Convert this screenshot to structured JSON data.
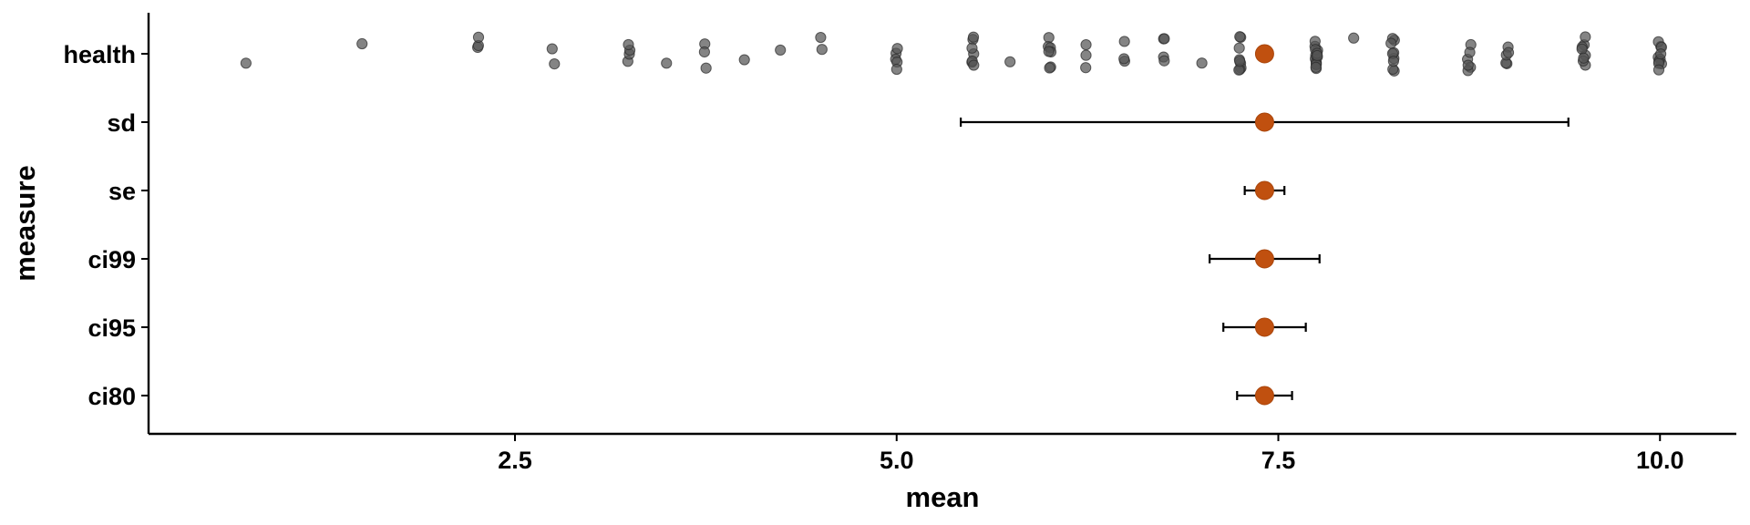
{
  "chart_data": {
    "type": "scatter",
    "title": "",
    "xlabel": "mean",
    "ylabel": "measure",
    "xlim": [
      0.1,
      10.5
    ],
    "x_ticks": [
      2.5,
      5.0,
      7.5,
      10.0
    ],
    "x_tick_labels": [
      "2.5",
      "5.0",
      "7.5",
      "10.0"
    ],
    "categories": [
      "health",
      "sd",
      "se",
      "ci99",
      "ci95",
      "ci80"
    ],
    "grid": false,
    "legend": "none",
    "colors": {
      "summary_point": "#c0500f",
      "raw_points": "#555555",
      "error_bars": "#000000"
    },
    "summary": [
      {
        "measure": "health",
        "mean": 7.41,
        "low": null,
        "high": null
      },
      {
        "measure": "sd",
        "mean": 7.41,
        "low": 5.42,
        "high": 9.4
      },
      {
        "measure": "se",
        "mean": 7.41,
        "low": 7.28,
        "high": 7.54
      },
      {
        "measure": "ci99",
        "mean": 7.41,
        "low": 7.05,
        "high": 7.77
      },
      {
        "measure": "ci95",
        "mean": 7.41,
        "low": 7.14,
        "high": 7.68
      },
      {
        "measure": "ci80",
        "mean": 7.41,
        "low": 7.23,
        "high": 7.59
      }
    ],
    "raw_data": {
      "measure": "health",
      "values": [
        0.75,
        1.5,
        2.25,
        2.25,
        2.25,
        2.75,
        2.75,
        3.25,
        3.25,
        3.25,
        3.25,
        3.5,
        3.75,
        3.75,
        3.75,
        4.0,
        4.25,
        4.5,
        4.5,
        5.0,
        5.0,
        5.0,
        5.0,
        5.0,
        5.5,
        5.5,
        5.5,
        5.5,
        5.5,
        5.5,
        5.5,
        5.75,
        6.0,
        6.0,
        6.0,
        6.0,
        6.0,
        6.0,
        6.0,
        6.25,
        6.25,
        6.25,
        6.5,
        6.5,
        6.5,
        6.75,
        6.75,
        6.75,
        6.75,
        7.0,
        7.25,
        7.25,
        7.25,
        7.25,
        7.25,
        7.25,
        7.25,
        7.25,
        7.25,
        7.75,
        7.75,
        7.75,
        7.75,
        7.75,
        7.75,
        7.75,
        7.75,
        7.75,
        7.75,
        7.75,
        7.75,
        7.75,
        7.75,
        8.0,
        8.25,
        8.25,
        8.25,
        8.25,
        8.25,
        8.25,
        8.25,
        8.25,
        8.25,
        8.75,
        8.75,
        8.75,
        8.75,
        8.75,
        8.75,
        9.0,
        9.0,
        9.0,
        9.0,
        9.0,
        9.5,
        9.5,
        9.5,
        9.5,
        9.5,
        9.5,
        9.5,
        9.5,
        10.0,
        10.0,
        10.0,
        10.0,
        10.0,
        10.0,
        10.0,
        10.0,
        10.0,
        10.0
      ]
    }
  }
}
